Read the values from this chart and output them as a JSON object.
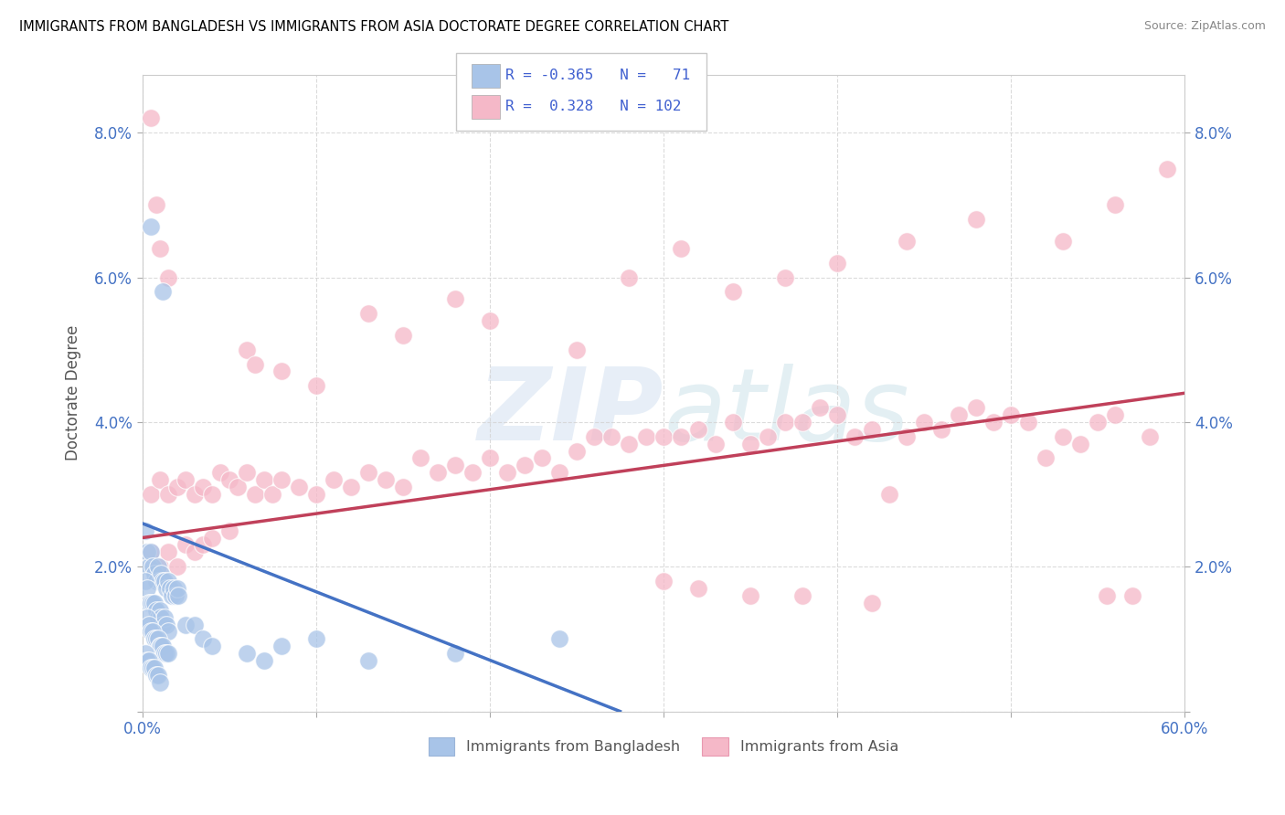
{
  "title": "IMMIGRANTS FROM BANGLADESH VS IMMIGRANTS FROM ASIA DOCTORATE DEGREE CORRELATION CHART",
  "source": "Source: ZipAtlas.com",
  "ylabel": "Doctorate Degree",
  "xlim": [
    0.0,
    0.6
  ],
  "ylim": [
    0.0,
    0.088
  ],
  "xticks": [
    0.0,
    0.1,
    0.2,
    0.3,
    0.4,
    0.5,
    0.6
  ],
  "xticklabels": [
    "0.0%",
    "",
    "",
    "",
    "",
    "",
    "60.0%"
  ],
  "yticks": [
    0.0,
    0.02,
    0.04,
    0.06,
    0.08
  ],
  "yticklabels": [
    "",
    "2.0%",
    "4.0%",
    "6.0%",
    "8.0%"
  ],
  "color_bangladesh": "#a8c4e8",
  "color_asia": "#f5b8c8",
  "line_color_bangladesh": "#4472c4",
  "line_color_asia": "#c0405a",
  "legend_text_color": "#4060d0",
  "background_color": "#ffffff",
  "trend_bangladesh": {
    "x_start": 0.0,
    "y_start": 0.026,
    "x_end": 0.275,
    "y_end": 0.0
  },
  "trend_asia": {
    "x_start": 0.0,
    "y_start": 0.024,
    "x_end": 0.6,
    "y_end": 0.044
  },
  "scatter_bangladesh": [
    [
      0.005,
      0.067
    ],
    [
      0.012,
      0.058
    ],
    [
      0.002,
      0.025
    ],
    [
      0.003,
      0.022
    ],
    [
      0.004,
      0.02
    ],
    [
      0.005,
      0.022
    ],
    [
      0.006,
      0.02
    ],
    [
      0.007,
      0.019
    ],
    [
      0.008,
      0.018
    ],
    [
      0.009,
      0.02
    ],
    [
      0.01,
      0.018
    ],
    [
      0.011,
      0.019
    ],
    [
      0.012,
      0.018
    ],
    [
      0.013,
      0.018
    ],
    [
      0.014,
      0.017
    ],
    [
      0.015,
      0.018
    ],
    [
      0.016,
      0.017
    ],
    [
      0.017,
      0.016
    ],
    [
      0.018,
      0.017
    ],
    [
      0.019,
      0.016
    ],
    [
      0.02,
      0.017
    ],
    [
      0.021,
      0.016
    ],
    [
      0.002,
      0.018
    ],
    [
      0.003,
      0.017
    ],
    [
      0.004,
      0.015
    ],
    [
      0.005,
      0.015
    ],
    [
      0.006,
      0.015
    ],
    [
      0.007,
      0.015
    ],
    [
      0.008,
      0.014
    ],
    [
      0.009,
      0.013
    ],
    [
      0.01,
      0.014
    ],
    [
      0.011,
      0.013
    ],
    [
      0.012,
      0.012
    ],
    [
      0.013,
      0.013
    ],
    [
      0.014,
      0.012
    ],
    [
      0.015,
      0.011
    ],
    [
      0.003,
      0.013
    ],
    [
      0.004,
      0.012
    ],
    [
      0.005,
      0.011
    ],
    [
      0.006,
      0.011
    ],
    [
      0.007,
      0.01
    ],
    [
      0.008,
      0.01
    ],
    [
      0.009,
      0.01
    ],
    [
      0.01,
      0.009
    ],
    [
      0.011,
      0.009
    ],
    [
      0.012,
      0.009
    ],
    [
      0.013,
      0.008
    ],
    [
      0.014,
      0.008
    ],
    [
      0.015,
      0.008
    ],
    [
      0.002,
      0.008
    ],
    [
      0.003,
      0.007
    ],
    [
      0.004,
      0.007
    ],
    [
      0.005,
      0.006
    ],
    [
      0.006,
      0.006
    ],
    [
      0.007,
      0.006
    ],
    [
      0.008,
      0.005
    ],
    [
      0.009,
      0.005
    ],
    [
      0.01,
      0.004
    ],
    [
      0.025,
      0.012
    ],
    [
      0.03,
      0.012
    ],
    [
      0.035,
      0.01
    ],
    [
      0.04,
      0.009
    ],
    [
      0.06,
      0.008
    ],
    [
      0.07,
      0.007
    ],
    [
      0.08,
      0.009
    ],
    [
      0.1,
      0.01
    ],
    [
      0.13,
      0.007
    ],
    [
      0.18,
      0.008
    ],
    [
      0.24,
      0.01
    ]
  ],
  "scatter_asia": [
    [
      0.005,
      0.082
    ],
    [
      0.008,
      0.07
    ],
    [
      0.01,
      0.064
    ],
    [
      0.015,
      0.06
    ],
    [
      0.005,
      0.03
    ],
    [
      0.01,
      0.032
    ],
    [
      0.015,
      0.03
    ],
    [
      0.02,
      0.031
    ],
    [
      0.025,
      0.032
    ],
    [
      0.03,
      0.03
    ],
    [
      0.035,
      0.031
    ],
    [
      0.04,
      0.03
    ],
    [
      0.045,
      0.033
    ],
    [
      0.05,
      0.032
    ],
    [
      0.055,
      0.031
    ],
    [
      0.06,
      0.033
    ],
    [
      0.065,
      0.03
    ],
    [
      0.07,
      0.032
    ],
    [
      0.075,
      0.03
    ],
    [
      0.08,
      0.032
    ],
    [
      0.09,
      0.031
    ],
    [
      0.1,
      0.03
    ],
    [
      0.11,
      0.032
    ],
    [
      0.12,
      0.031
    ],
    [
      0.13,
      0.033
    ],
    [
      0.14,
      0.032
    ],
    [
      0.15,
      0.031
    ],
    [
      0.16,
      0.035
    ],
    [
      0.17,
      0.033
    ],
    [
      0.18,
      0.034
    ],
    [
      0.19,
      0.033
    ],
    [
      0.2,
      0.035
    ],
    [
      0.21,
      0.033
    ],
    [
      0.22,
      0.034
    ],
    [
      0.23,
      0.035
    ],
    [
      0.24,
      0.033
    ],
    [
      0.25,
      0.036
    ],
    [
      0.26,
      0.038
    ],
    [
      0.27,
      0.038
    ],
    [
      0.28,
      0.037
    ],
    [
      0.29,
      0.038
    ],
    [
      0.3,
      0.038
    ],
    [
      0.31,
      0.038
    ],
    [
      0.32,
      0.039
    ],
    [
      0.33,
      0.037
    ],
    [
      0.34,
      0.04
    ],
    [
      0.35,
      0.037
    ],
    [
      0.36,
      0.038
    ],
    [
      0.37,
      0.04
    ],
    [
      0.38,
      0.04
    ],
    [
      0.39,
      0.042
    ],
    [
      0.4,
      0.041
    ],
    [
      0.41,
      0.038
    ],
    [
      0.42,
      0.039
    ],
    [
      0.43,
      0.03
    ],
    [
      0.44,
      0.038
    ],
    [
      0.45,
      0.04
    ],
    [
      0.46,
      0.039
    ],
    [
      0.47,
      0.041
    ],
    [
      0.48,
      0.042
    ],
    [
      0.49,
      0.04
    ],
    [
      0.5,
      0.041
    ],
    [
      0.51,
      0.04
    ],
    [
      0.52,
      0.035
    ],
    [
      0.53,
      0.038
    ],
    [
      0.54,
      0.037
    ],
    [
      0.55,
      0.04
    ],
    [
      0.555,
      0.016
    ],
    [
      0.56,
      0.041
    ],
    [
      0.57,
      0.016
    ],
    [
      0.58,
      0.038
    ],
    [
      0.005,
      0.022
    ],
    [
      0.01,
      0.02
    ],
    [
      0.015,
      0.022
    ],
    [
      0.02,
      0.02
    ],
    [
      0.025,
      0.023
    ],
    [
      0.03,
      0.022
    ],
    [
      0.035,
      0.023
    ],
    [
      0.04,
      0.024
    ],
    [
      0.05,
      0.025
    ],
    [
      0.06,
      0.05
    ],
    [
      0.065,
      0.048
    ],
    [
      0.08,
      0.047
    ],
    [
      0.1,
      0.045
    ],
    [
      0.13,
      0.055
    ],
    [
      0.15,
      0.052
    ],
    [
      0.18,
      0.057
    ],
    [
      0.2,
      0.054
    ],
    [
      0.25,
      0.05
    ],
    [
      0.28,
      0.06
    ],
    [
      0.31,
      0.064
    ],
    [
      0.34,
      0.058
    ],
    [
      0.37,
      0.06
    ],
    [
      0.4,
      0.062
    ],
    [
      0.44,
      0.065
    ],
    [
      0.48,
      0.068
    ],
    [
      0.53,
      0.065
    ],
    [
      0.56,
      0.07
    ],
    [
      0.59,
      0.075
    ],
    [
      0.3,
      0.018
    ],
    [
      0.32,
      0.017
    ],
    [
      0.35,
      0.016
    ],
    [
      0.38,
      0.016
    ],
    [
      0.42,
      0.015
    ]
  ]
}
